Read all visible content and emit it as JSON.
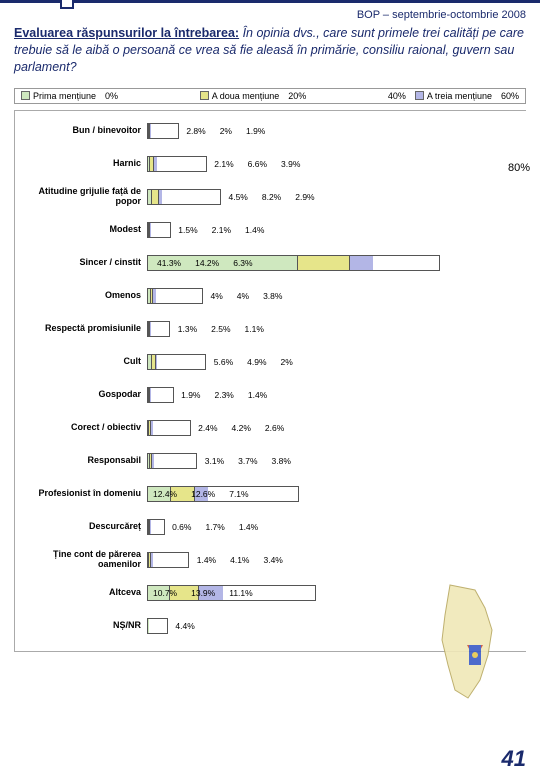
{
  "header": {
    "bop": "BOP – septembrie-octombrie 2008"
  },
  "title": {
    "lead": "Evaluarea răspunsurilor la întrebarea:",
    "rest_italic": " În opinia dvs., care sunt primele trei calități pe care trebuie să le aibă o persoană ce vrea să fie aleasă în primărie, consiliu raional, guvern sau parlament?"
  },
  "legend": {
    "items": [
      {
        "label": "Prima mențiune",
        "color": "#cfe8bf"
      },
      {
        "label": "A doua mențiune",
        "color": "#e6e58a"
      },
      {
        "label": "A treia mențiune",
        "color": "#b3b6e6"
      }
    ]
  },
  "axis": {
    "ticks": [
      "0%",
      "20%",
      "40%",
      "60%"
    ],
    "extra": "80%",
    "max_percent": 80
  },
  "chart": {
    "colors": [
      "#cfe8bf",
      "#e6e58a",
      "#b3b6e6"
    ],
    "border": "#555",
    "rows": [
      {
        "cat": "Bun / binevoitor",
        "v": [
          2.8,
          2.0,
          1.9
        ]
      },
      {
        "cat": "Harnic",
        "v": [
          2.1,
          6.6,
          3.9
        ]
      },
      {
        "cat": "Atitudine grijulie față de popor",
        "v": [
          4.5,
          8.2,
          2.9
        ]
      },
      {
        "cat": "Modest",
        "v": [
          1.5,
          2.1,
          1.4
        ]
      },
      {
        "cat": "Sincer / cinstit",
        "v": [
          41.3,
          14.2,
          6.3
        ]
      },
      {
        "cat": "Omenos",
        "v": [
          4.0,
          4.0,
          3.8
        ]
      },
      {
        "cat": "Respectă promisiunile",
        "v": [
          1.3,
          2.5,
          1.1
        ]
      },
      {
        "cat": "Cult",
        "v": [
          5.6,
          4.9,
          2.0
        ]
      },
      {
        "cat": "Gospodar",
        "v": [
          1.9,
          2.3,
          1.4
        ]
      },
      {
        "cat": "Corect / obiectiv",
        "v": [
          2.4,
          4.2,
          2.6
        ]
      },
      {
        "cat": "Responsabil",
        "v": [
          3.1,
          3.7,
          3.8
        ]
      },
      {
        "cat": "Profesionist în domeniu",
        "v": [
          12.4,
          12.6,
          7.1
        ]
      },
      {
        "cat": "Descurcăreț",
        "v": [
          0.6,
          1.7,
          1.4
        ]
      },
      {
        "cat": "Ține cont de părerea oamenilor",
        "v": [
          1.4,
          4.1,
          3.4
        ]
      },
      {
        "cat": "Altceva",
        "v": [
          10.7,
          13.9,
          11.1
        ]
      },
      {
        "cat": "NȘ/NR",
        "v": [
          4.4,
          null,
          null
        ]
      }
    ]
  },
  "page": "41"
}
